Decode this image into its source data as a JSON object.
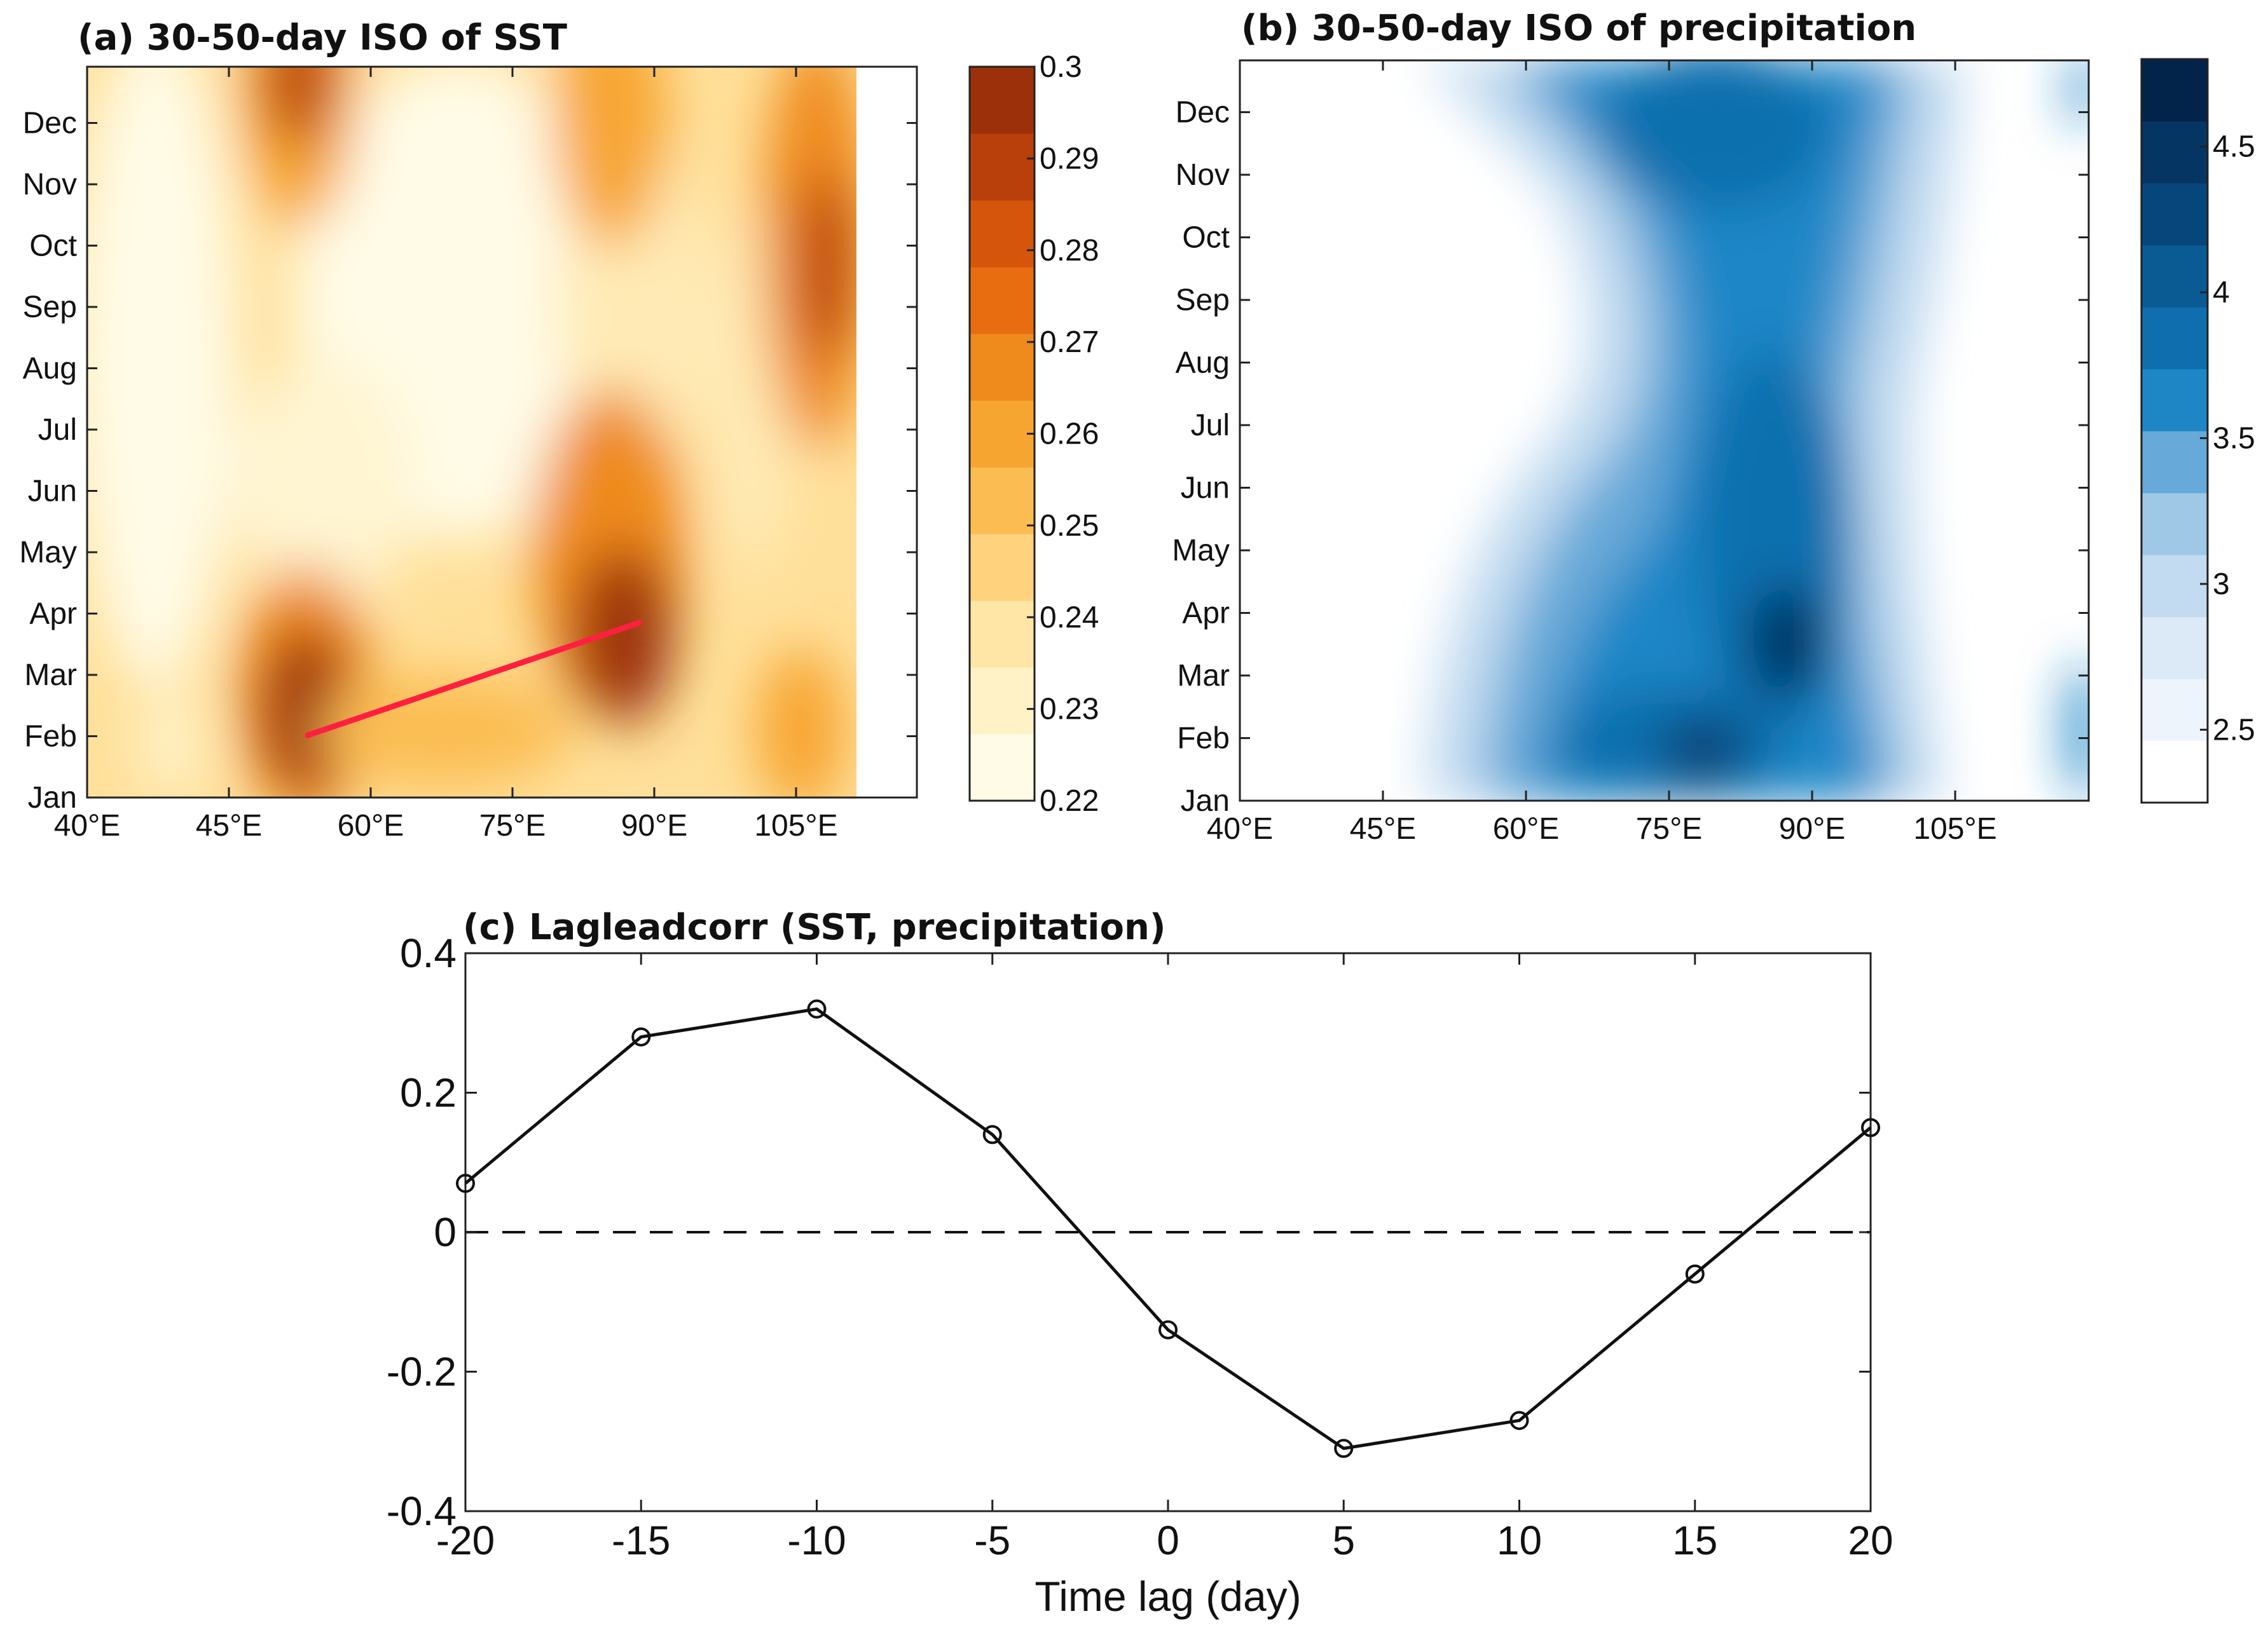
{
  "chart_data": [
    {
      "panel": "a",
      "type": "heatmap",
      "title": "(a) 30-50-day ISO of SST",
      "x_ticks": [
        "40°E",
        "45°E",
        "60°E",
        "75°E",
        "90°E",
        "105°E"
      ],
      "y_ticks": [
        "Jan",
        "Feb",
        "Mar",
        "Apr",
        "May",
        "Jun",
        "Jul",
        "Aug",
        "Sep",
        "Oct",
        "Nov",
        "Dec"
      ],
      "colorbar": {
        "levels": [
          0.22,
          0.23,
          0.24,
          0.25,
          0.26,
          0.27,
          0.28,
          0.29,
          0.3
        ],
        "tick_labels": [
          "0.22",
          "0.23",
          "0.24",
          "0.25",
          "0.26",
          "0.27",
          "0.28",
          "0.29",
          "0.3"
        ],
        "colors": [
          "#fffbe6",
          "#fff2c7",
          "#ffe5a6",
          "#ffd27e",
          "#fbbd52",
          "#f7a531",
          "#ef8a1d",
          "#e86d10",
          "#d4550b",
          "#b9400a",
          "#9c300a"
        ]
      },
      "contour_features": [
        {
          "lon": 56,
          "month": 2.4,
          "value": 0.3
        },
        {
          "lon": 88,
          "month": 3.3,
          "value": 0.295
        },
        {
          "lon": 108,
          "month": 9.8,
          "value": 0.29
        },
        {
          "lon": 56,
          "month": 12.0,
          "value": 0.28
        },
        {
          "lon": 70,
          "month": 8.0,
          "value": 0.22
        },
        {
          "lon": 48,
          "month": 7.5,
          "value": 0.22
        }
      ],
      "annotation_line": {
        "from": {
          "lon": 56,
          "month": 1.97
        },
        "to": {
          "lon": 89,
          "month": 3.96
        },
        "color": "#ff2040"
      }
    },
    {
      "panel": "b",
      "type": "heatmap",
      "title": "(b) 30-50-day ISO of precipitation",
      "x_ticks": [
        "40°E",
        "45°E",
        "60°E",
        "75°E",
        "90°E",
        "105°E"
      ],
      "y_ticks": [
        "Jan",
        "Feb",
        "Mar",
        "Apr",
        "May",
        "Jun",
        "Jul",
        "Aug",
        "Sep",
        "Oct",
        "Nov",
        "Dec"
      ],
      "colorbar": {
        "levels": [
          2.5,
          3,
          3.5,
          4,
          4.5
        ],
        "tick_labels": [
          "2.5",
          "3",
          "3.5",
          "4",
          "4.5"
        ],
        "colors": [
          "#ffffff",
          "#eef4fb",
          "#dce9f6",
          "#c3dbf0",
          "#9fc8e6",
          "#67a9d8",
          "#1f86c6",
          "#0f6fae",
          "#0a5a94",
          "#07467a",
          "#053563",
          "#03244a"
        ]
      },
      "contour_features": [
        {
          "lon": 84,
          "month": 3.5,
          "value": 4.3
        },
        {
          "lon": 78,
          "month": 2.0,
          "value": 4.0
        },
        {
          "lon": 80,
          "month": 12.0,
          "value": 3.9
        },
        {
          "lon": 60,
          "month": 6.5,
          "value": 2.5
        }
      ]
    },
    {
      "panel": "c",
      "type": "line",
      "title": "(c) Lagleadcorr (SST, precipitation)",
      "xlabel": "Time lag (day)",
      "ylabel": "",
      "xlim": [
        -20,
        20
      ],
      "ylim": [
        -0.4,
        0.4
      ],
      "x": [
        -20,
        -15,
        -10,
        -5,
        0,
        5,
        10,
        15,
        20
      ],
      "values": [
        0.07,
        0.28,
        0.32,
        0.14,
        -0.14,
        -0.31,
        -0.27,
        -0.06,
        0.15
      ],
      "x_tick_labels": [
        "-20",
        "-15",
        "-10",
        "-5",
        "0",
        "5",
        "10",
        "15",
        "20"
      ],
      "y_tick_labels": [
        "-0.4",
        "-0.2",
        "0",
        "0.2",
        "0.4"
      ],
      "reference_line": {
        "y": 0,
        "style": "dashed"
      },
      "marker": "open-circle"
    }
  ]
}
